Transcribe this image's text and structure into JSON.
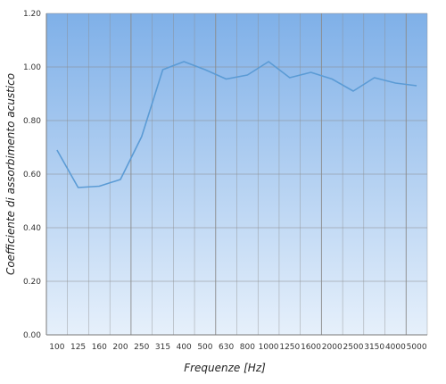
{
  "chart_data": {
    "type": "line",
    "title": "",
    "xlabel": "Frequenze [Hz]",
    "ylabel": "Coefficiente di assorbimento acustico",
    "categories": [
      "100",
      "125",
      "160",
      "200",
      "250",
      "315",
      "400",
      "500",
      "630",
      "800",
      "1000",
      "1250",
      "1600",
      "2000",
      "2500",
      "3150",
      "4000",
      "5000"
    ],
    "series": [
      {
        "values": [
          0.69,
          0.55,
          0.555,
          0.58,
          0.74,
          0.99,
          1.02,
          0.99,
          0.955,
          0.97,
          1.02,
          0.96,
          0.98,
          0.955,
          0.91,
          0.96,
          0.94,
          0.93
        ],
        "color": "#5b9bd5"
      }
    ],
    "ylim": [
      0,
      1.2
    ],
    "yticks": [
      "0.00",
      "0.20",
      "0.40",
      "0.60",
      "0.80",
      "1.00",
      "1.20"
    ],
    "grid": true,
    "legend": "none",
    "colors": {
      "background_top": "#7fb0e8",
      "background_bottom": "#e6f0fb",
      "gridline": "#8a8a8a",
      "line": "#5b9bd5"
    }
  }
}
